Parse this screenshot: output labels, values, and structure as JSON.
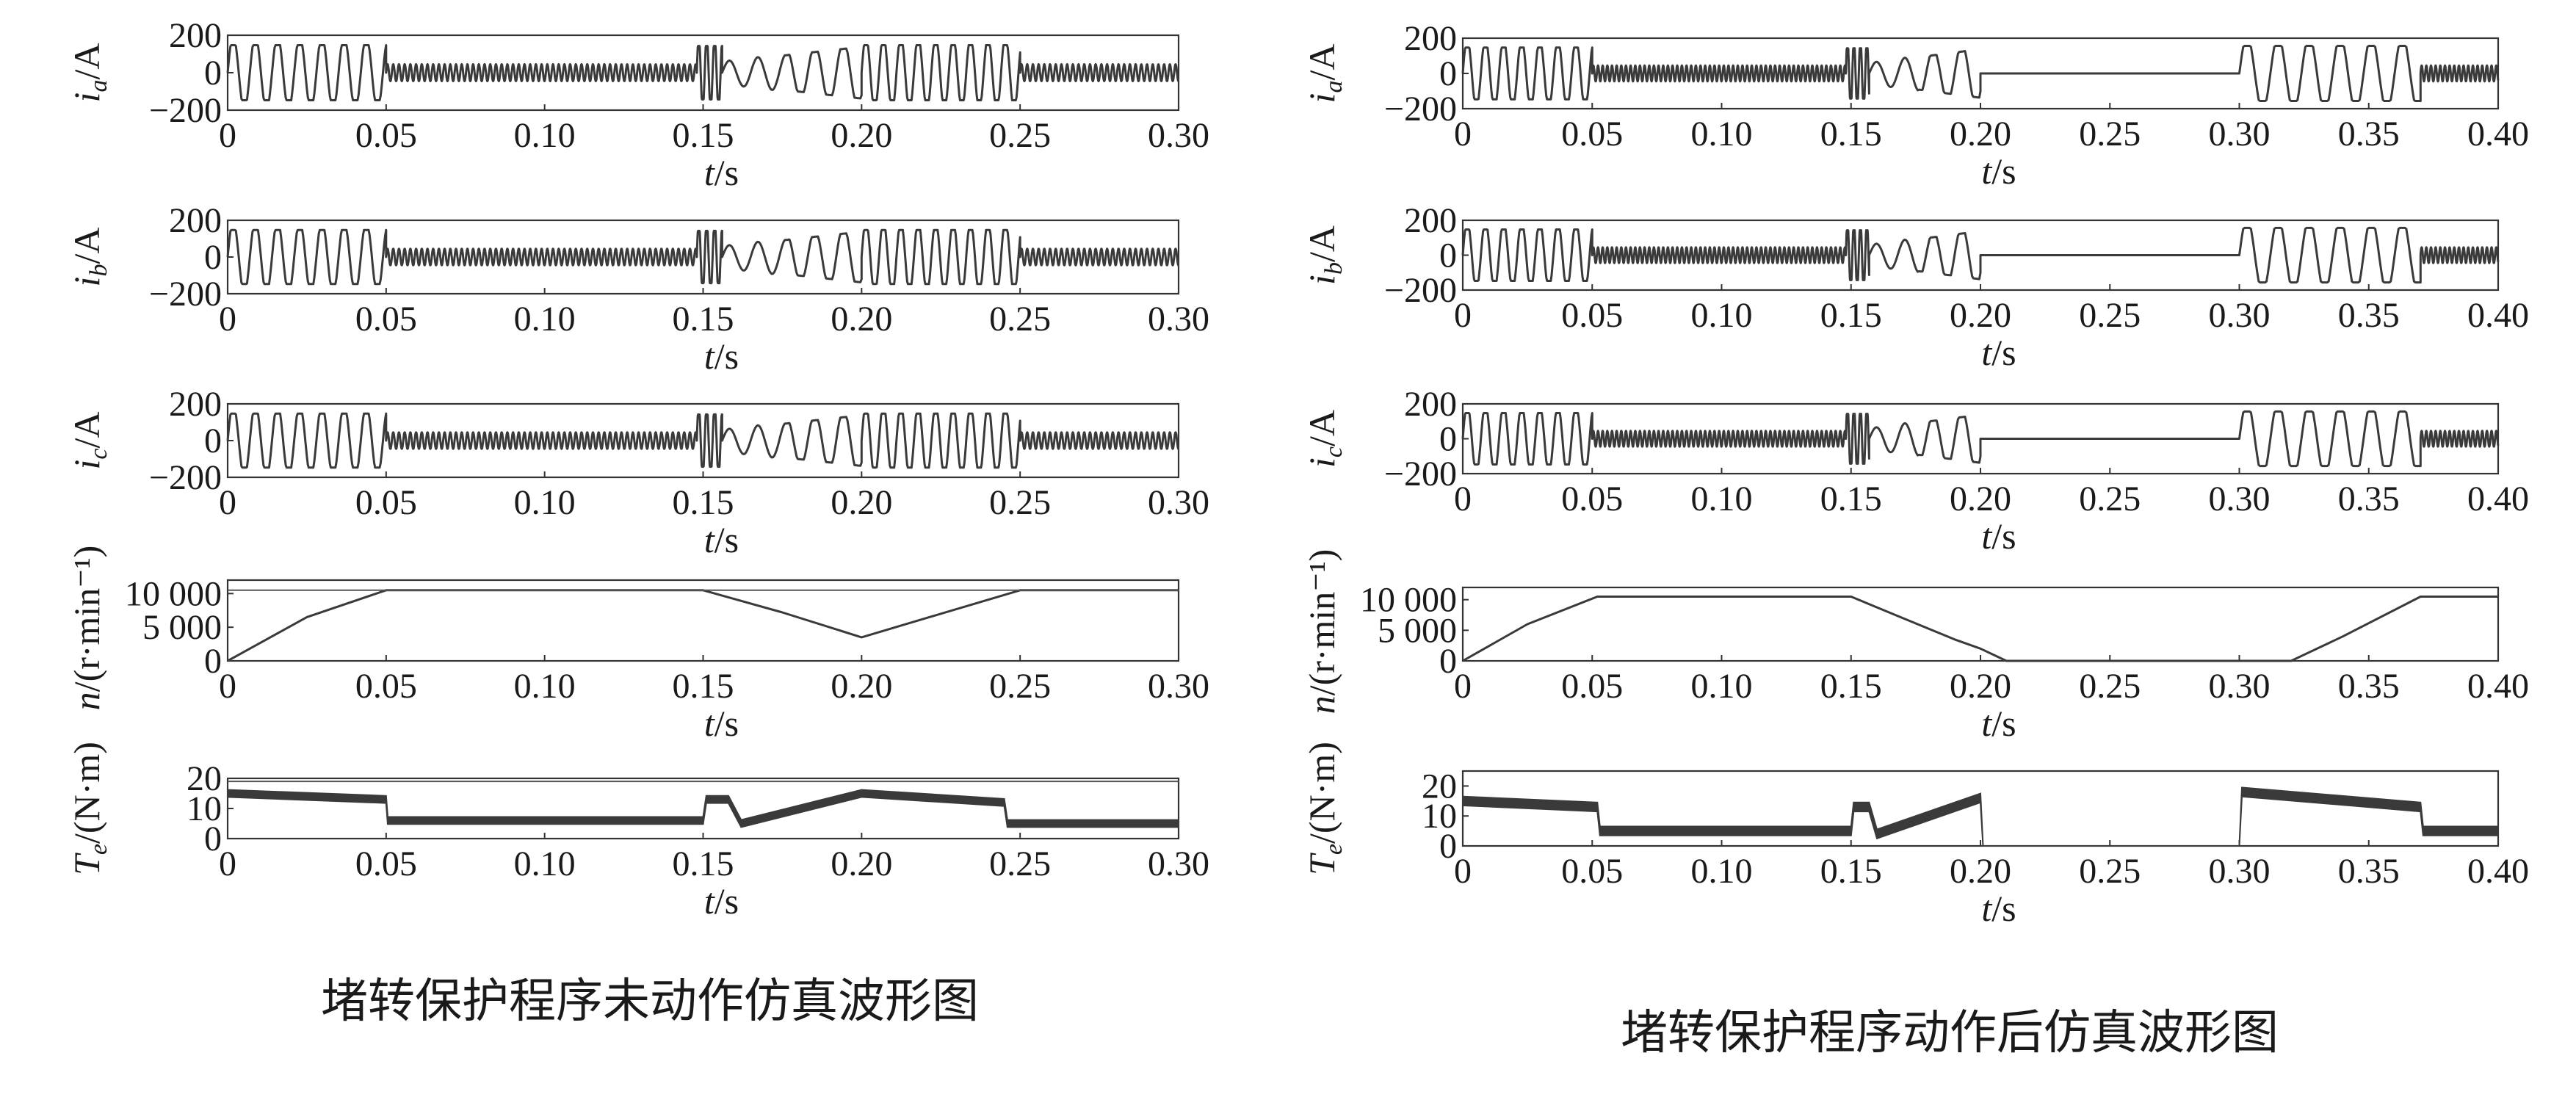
{
  "captions": {
    "left": "堵转保护程序未动作仿真波形图",
    "right": "堵转保护程序动作后仿真波形图"
  },
  "chart_data": [
    {
      "name": "left",
      "type": "line",
      "xlabel": "t/s",
      "xlim": [
        0,
        0.3
      ],
      "xticks": [
        "0",
        "0.05",
        "0.10",
        "0.15",
        "0.20",
        "0.25",
        "0.30"
      ],
      "panels": [
        {
          "id": "ia",
          "ylabel": "i_a/A",
          "ylim": [
            -200,
            200
          ],
          "yticks": [
            "200",
            "0",
            "−200"
          ],
          "segments": [
            {
              "x": [
                0,
                0.05
              ],
              "amp": 160,
              "period": 0.007
            },
            {
              "x": [
                0.05,
                0.148
              ],
              "amp": 45,
              "period": 0.0018
            },
            {
              "x": [
                0.148,
                0.156
              ],
              "amp": 155,
              "period": 0.0025
            },
            {
              "x": [
                0.156,
                0.2
              ],
              "amp": 110,
              "period": 0.009
            },
            {
              "x": [
                0.2,
                0.25
              ],
              "amp": 160,
              "period": 0.0055
            },
            {
              "x": [
                0.25,
                0.3
              ],
              "amp": 45,
              "period": 0.0018
            }
          ]
        },
        {
          "id": "ib",
          "ylabel": "i_b/A",
          "ylim": [
            -200,
            200
          ],
          "yticks": [
            "200",
            "0",
            "−200"
          ],
          "segments": [
            {
              "x": [
                0,
                0.05
              ],
              "amp": 160,
              "period": 0.007
            },
            {
              "x": [
                0.05,
                0.148
              ],
              "amp": 45,
              "period": 0.0018
            },
            {
              "x": [
                0.148,
                0.156
              ],
              "amp": 155,
              "period": 0.0025
            },
            {
              "x": [
                0.156,
                0.2
              ],
              "amp": 110,
              "period": 0.009
            },
            {
              "x": [
                0.2,
                0.25
              ],
              "amp": 160,
              "period": 0.0055
            },
            {
              "x": [
                0.25,
                0.3
              ],
              "amp": 45,
              "period": 0.0018
            }
          ]
        },
        {
          "id": "ic",
          "ylabel": "i_c/A",
          "ylim": [
            -200,
            200
          ],
          "yticks": [
            "200",
            "0",
            "−200"
          ],
          "segments": [
            {
              "x": [
                0,
                0.05
              ],
              "amp": 160,
              "period": 0.007
            },
            {
              "x": [
                0.05,
                0.148
              ],
              "amp": 45,
              "period": 0.0018
            },
            {
              "x": [
                0.148,
                0.156
              ],
              "amp": 155,
              "period": 0.0025
            },
            {
              "x": [
                0.156,
                0.2
              ],
              "amp": 110,
              "period": 0.009
            },
            {
              "x": [
                0.2,
                0.25
              ],
              "amp": 160,
              "period": 0.0055
            },
            {
              "x": [
                0.25,
                0.3
              ],
              "amp": 45,
              "period": 0.0018
            }
          ]
        },
        {
          "id": "n",
          "ylabel": "n/(r·min⁻¹)",
          "ylim": [
            0,
            12000
          ],
          "yticks": [
            "10 000",
            "5 000",
            "0"
          ],
          "ytick_values": [
            10000,
            5000,
            0
          ],
          "line": {
            "x": [
              0,
              0.025,
              0.05,
              0.15,
              0.175,
              0.2,
              0.225,
              0.25,
              0.3
            ],
            "y": [
              0,
              6500,
              10500,
              10500,
              7200,
              3500,
              7000,
              10500,
              10500
            ]
          },
          "ref_y": 10500
        },
        {
          "id": "Te",
          "ylabel": "T_e/(N·m)",
          "ylim": [
            0,
            20
          ],
          "yticks": [
            "20",
            "10",
            "0"
          ],
          "ytick_values": [
            20,
            10,
            0
          ],
          "band": {
            "x": [
              0,
              0.05,
              0.0505,
              0.15,
              0.151,
              0.158,
              0.162,
              0.2,
              0.245,
              0.246,
              0.3
            ],
            "mean": [
              15,
              13,
              6,
              6,
              13,
              13,
              5,
              15,
              12,
              5,
              5
            ],
            "ripple": 1.2
          },
          "ref_y": 19
        }
      ]
    },
    {
      "name": "right",
      "type": "line",
      "xlabel": "t/s",
      "xlim": [
        0,
        0.4
      ],
      "xticks": [
        "0",
        "0.05",
        "0.10",
        "0.15",
        "0.20",
        "0.25",
        "0.30",
        "0.35",
        "0.40"
      ],
      "panels": [
        {
          "id": "ia",
          "ylabel": "i_a/A",
          "ylim": [
            -200,
            200
          ],
          "yticks": [
            "200",
            "0",
            "−200"
          ],
          "segments": [
            {
              "x": [
                0,
                0.05
              ],
              "amp": 160,
              "period": 0.007
            },
            {
              "x": [
                0.05,
                0.148
              ],
              "amp": 45,
              "period": 0.0018
            },
            {
              "x": [
                0.148,
                0.157
              ],
              "amp": 155,
              "period": 0.0025
            },
            {
              "x": [
                0.157,
                0.2
              ],
              "amp": 110,
              "period": 0.011
            },
            {
              "x": [
                0.2,
                0.3
              ],
              "amp": 0,
              "period": 0.01
            },
            {
              "x": [
                0.3,
                0.37
              ],
              "amp": 170,
              "period": 0.012
            },
            {
              "x": [
                0.37,
                0.4
              ],
              "amp": 45,
              "period": 0.0018
            }
          ]
        },
        {
          "id": "ib",
          "ylabel": "i_b/A",
          "ylim": [
            -200,
            200
          ],
          "yticks": [
            "200",
            "0",
            "−200"
          ],
          "segments": [
            {
              "x": [
                0,
                0.05
              ],
              "amp": 160,
              "period": 0.007
            },
            {
              "x": [
                0.05,
                0.148
              ],
              "amp": 45,
              "period": 0.0018
            },
            {
              "x": [
                0.148,
                0.157
              ],
              "amp": 155,
              "period": 0.0025
            },
            {
              "x": [
                0.157,
                0.2
              ],
              "amp": 110,
              "period": 0.011
            },
            {
              "x": [
                0.2,
                0.3
              ],
              "amp": 0,
              "period": 0.01
            },
            {
              "x": [
                0.3,
                0.37
              ],
              "amp": 170,
              "period": 0.012
            },
            {
              "x": [
                0.37,
                0.4
              ],
              "amp": 45,
              "period": 0.0018
            }
          ]
        },
        {
          "id": "ic",
          "ylabel": "i_c/A",
          "ylim": [
            -200,
            200
          ],
          "yticks": [
            "200",
            "0",
            "−200"
          ],
          "segments": [
            {
              "x": [
                0,
                0.05
              ],
              "amp": 160,
              "period": 0.007
            },
            {
              "x": [
                0.05,
                0.148
              ],
              "amp": 45,
              "period": 0.0018
            },
            {
              "x": [
                0.148,
                0.157
              ],
              "amp": 155,
              "period": 0.0025
            },
            {
              "x": [
                0.157,
                0.2
              ],
              "amp": 110,
              "period": 0.011
            },
            {
              "x": [
                0.2,
                0.3
              ],
              "amp": 0,
              "period": 0.01
            },
            {
              "x": [
                0.3,
                0.37
              ],
              "amp": 170,
              "period": 0.012
            },
            {
              "x": [
                0.37,
                0.4
              ],
              "amp": 45,
              "period": 0.0018
            }
          ]
        },
        {
          "id": "n",
          "ylabel": "n/(r·min⁻¹)",
          "ylim": [
            0,
            12000
          ],
          "yticks": [
            "10 000",
            "5 000",
            "0"
          ],
          "ytick_values": [
            10000,
            5000,
            0
          ],
          "line": {
            "x": [
              0,
              0.025,
              0.052,
              0.15,
              0.17,
              0.19,
              0.2,
              0.21,
              0.32,
              0.34,
              0.37,
              0.4
            ],
            "y": [
              0,
              6000,
              10500,
              10500,
              7000,
              3500,
              2000,
              0,
              0,
              4000,
              10500,
              10500
            ]
          }
        },
        {
          "id": "Te",
          "ylabel": "T_e/(N·m)",
          "ylim": [
            0,
            25
          ],
          "yticks": [
            "20",
            "10",
            "0"
          ],
          "ytick_values": [
            20,
            10,
            0
          ],
          "band": {
            "x": [
              0,
              0.052,
              0.053,
              0.15,
              0.151,
              0.157,
              0.16,
              0.2,
              0.201,
              0.3,
              0.301,
              0.37,
              0.371,
              0.4
            ],
            "mean": [
              15,
              13,
              5,
              5,
              13,
              13,
              4,
              16,
              0,
              0,
              18,
              13,
              5,
              5
            ],
            "ripple": 1.5
          }
        }
      ]
    }
  ]
}
